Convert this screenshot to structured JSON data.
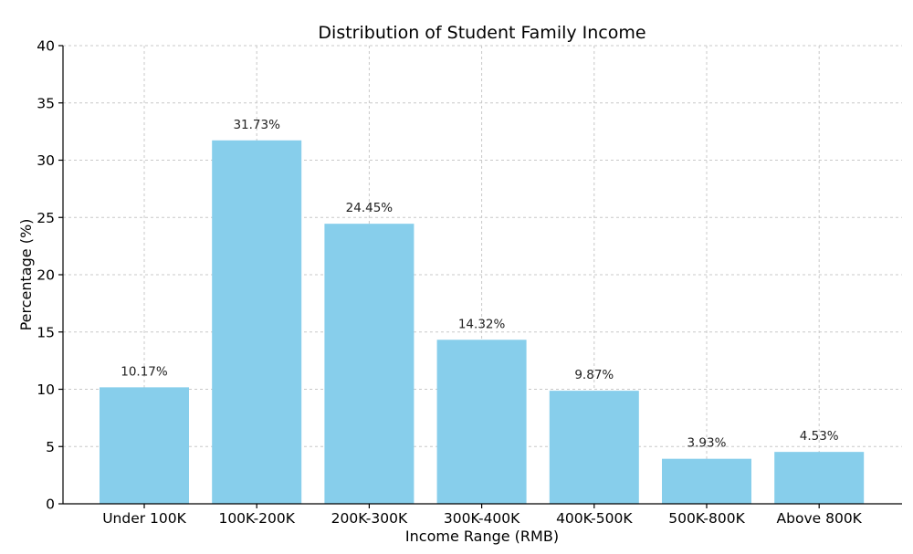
{
  "chart_data": {
    "type": "bar",
    "title": "Distribution of Student Family Income",
    "xlabel": "Income Range (RMB)",
    "ylabel": "Percentage (%)",
    "categories": [
      "Under 100K",
      "100K-200K",
      "200K-300K",
      "300K-400K",
      "400K-500K",
      "500K-800K",
      "Above 800K"
    ],
    "values": [
      10.17,
      31.73,
      24.45,
      14.32,
      9.87,
      3.93,
      4.53
    ],
    "data_labels": [
      "10.17%",
      "31.73%",
      "24.45%",
      "14.32%",
      "9.87%",
      "3.93%",
      "4.53%"
    ],
    "ylim": [
      0,
      40
    ],
    "yticks": [
      0,
      5,
      10,
      15,
      20,
      25,
      30,
      35,
      40
    ],
    "grid": true,
    "bar_color": "#87CEEB"
  }
}
